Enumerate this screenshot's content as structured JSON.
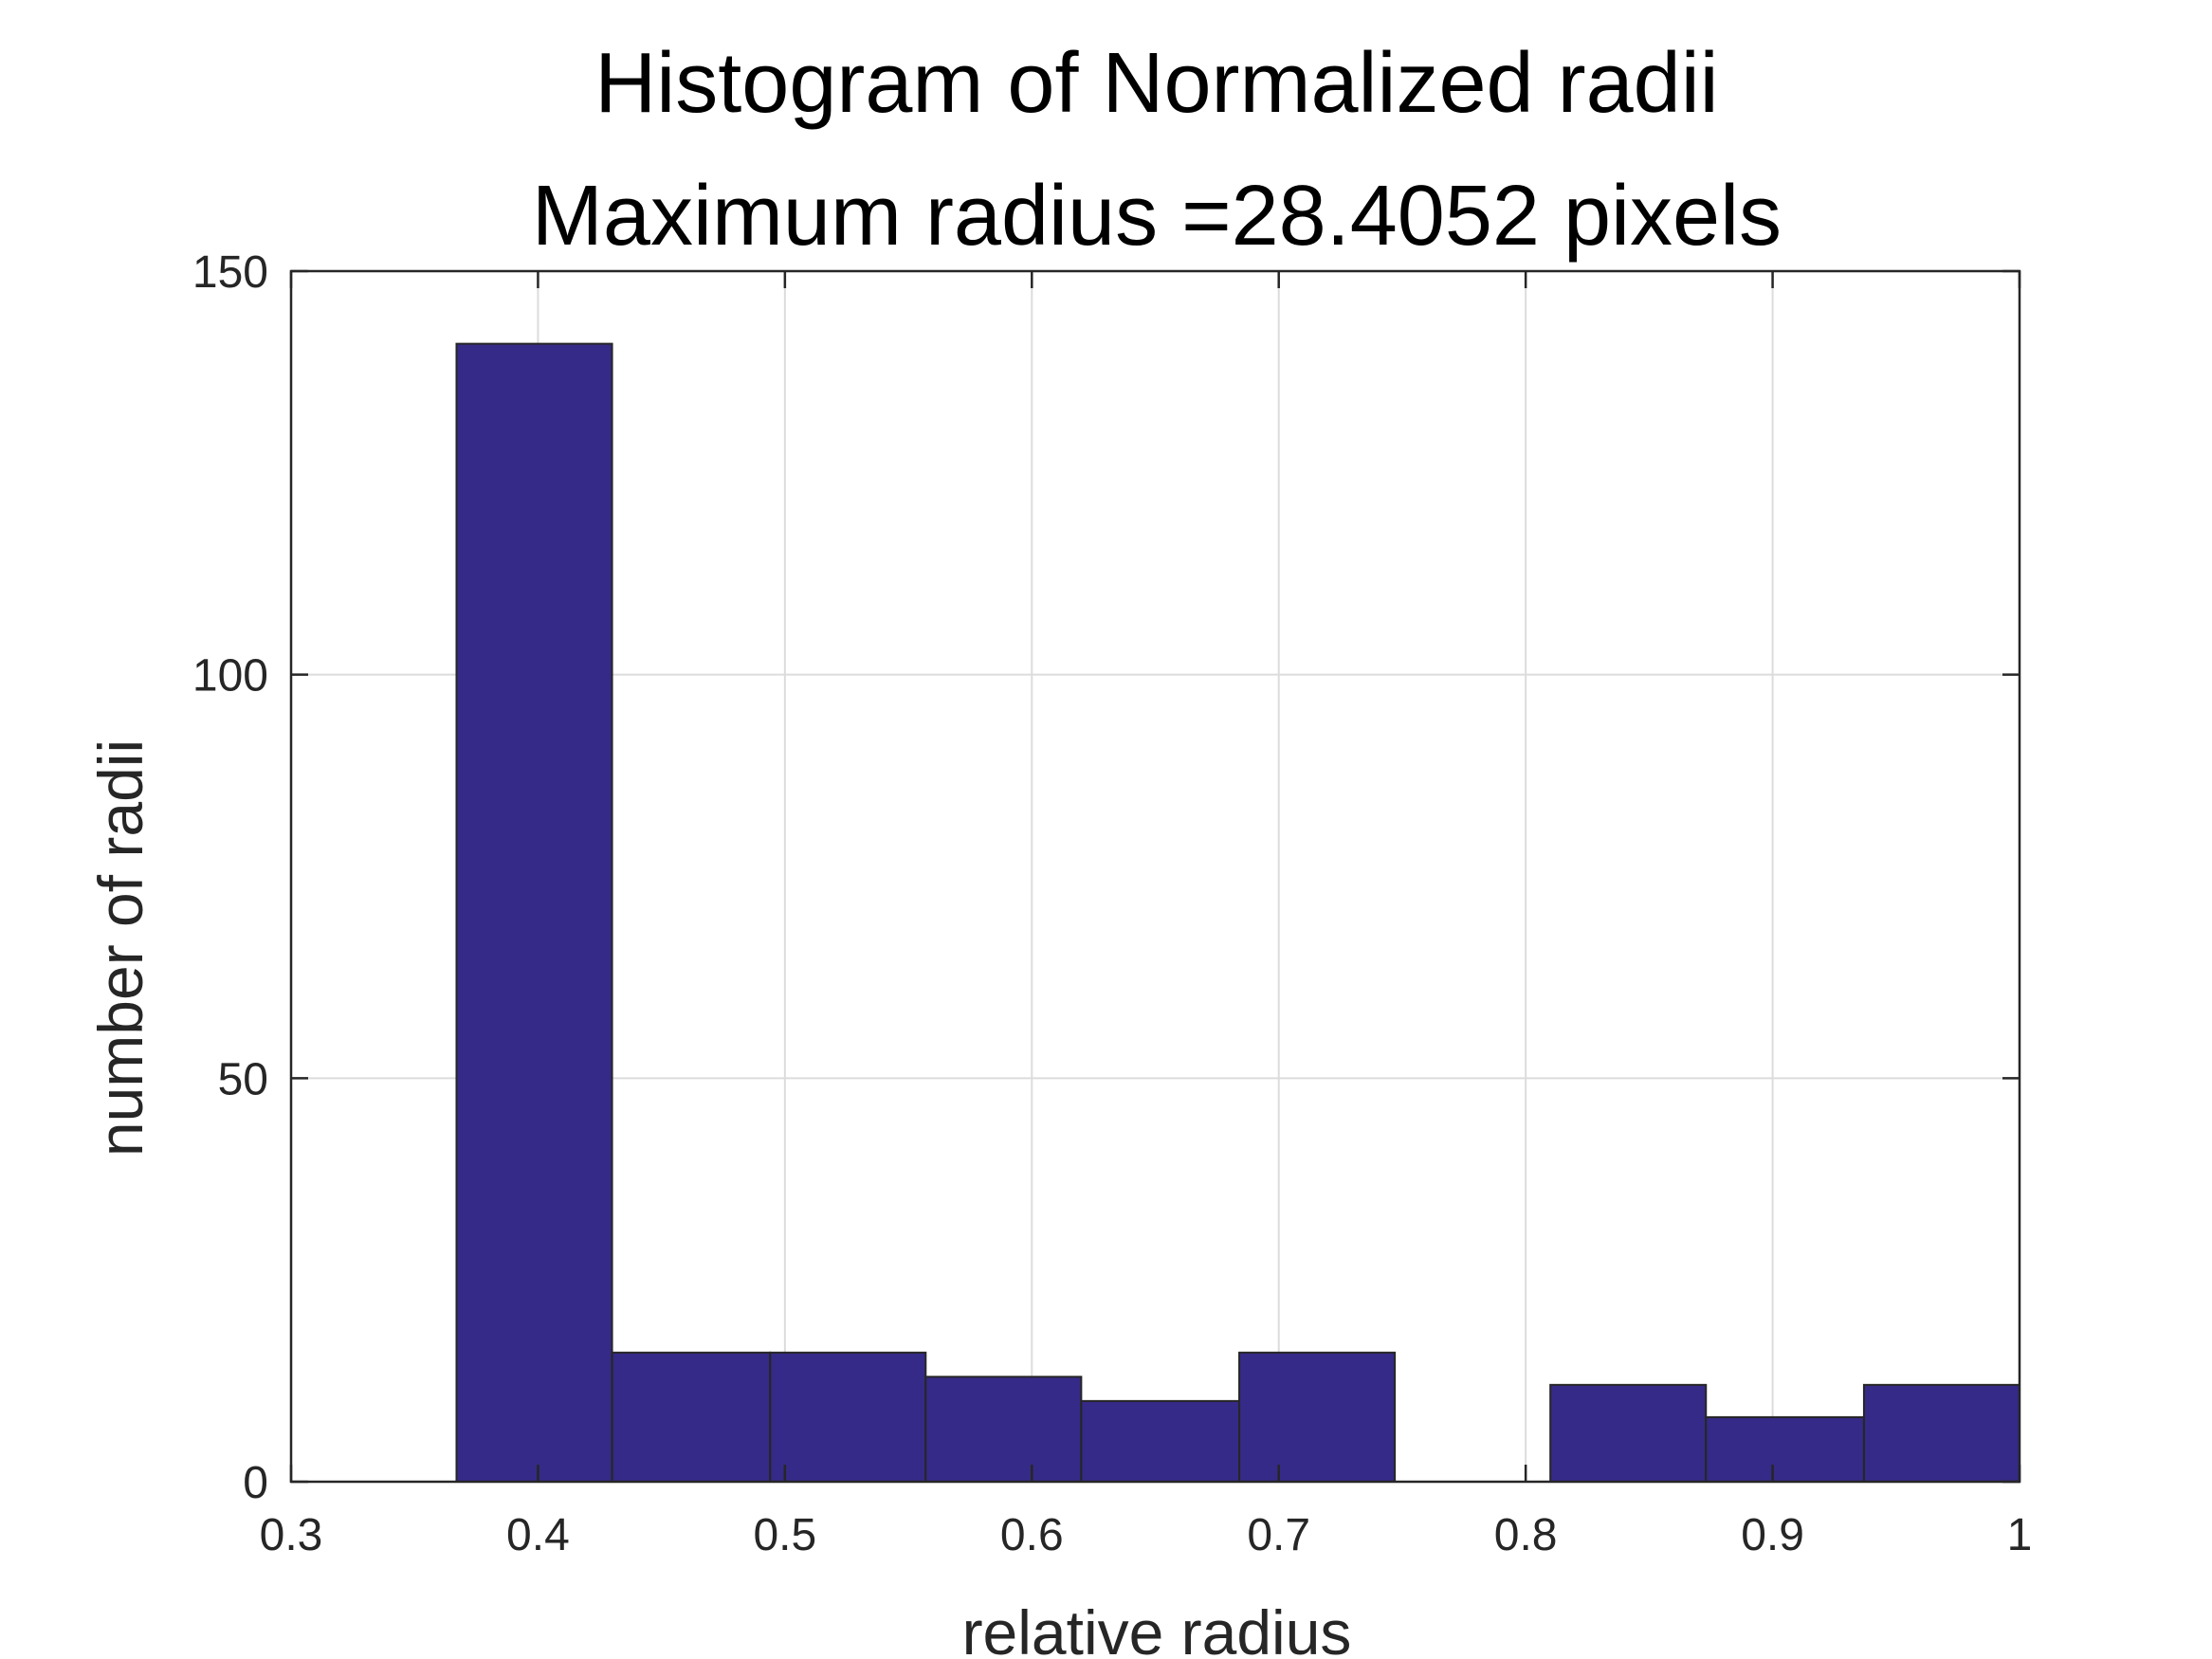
{
  "chart_data": {
    "type": "bar",
    "title": "Histogram of Normalized radii",
    "subtitle": "Maximum radius =28.4052 pixels",
    "xlabel": "relative radius",
    "ylabel": "number of radii",
    "xlim": [
      0.3,
      1.0
    ],
    "ylim": [
      0,
      150
    ],
    "grid": true,
    "xticks": [
      0.3,
      0.4,
      0.5,
      0.6,
      0.7,
      0.8,
      0.9,
      1.0
    ],
    "xtick_labels": [
      "0.3",
      "0.4",
      "0.5",
      "0.6",
      "0.7",
      "0.8",
      "0.9",
      "1"
    ],
    "yticks": [
      0,
      50,
      100,
      150
    ],
    "ytick_labels": [
      "0",
      "50",
      "100",
      "150"
    ],
    "bin_edges": [
      0.367,
      0.43,
      0.494,
      0.557,
      0.62,
      0.684,
      0.747,
      0.81,
      0.873,
      0.937,
      1.0
    ],
    "values": [
      141,
      16,
      16,
      13,
      10,
      16,
      0,
      12,
      8,
      12
    ],
    "bar_color": "#352a87",
    "edge_color": "#262626"
  }
}
